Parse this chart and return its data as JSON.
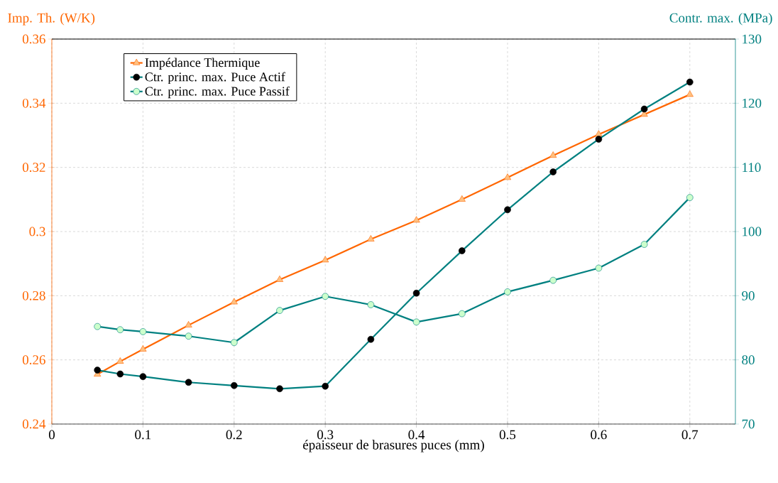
{
  "chart_data": {
    "type": "line",
    "xlabel": "épaisseur de brasures puces (mm)",
    "ylabel": "Imp. Th. (W/K)",
    "y2label": "Contr. max. (MPa)",
    "x": [
      0.05,
      0.075,
      0.1,
      0.15,
      0.2,
      0.25,
      0.3,
      0.35,
      0.4,
      0.45,
      0.5,
      0.55,
      0.6,
      0.65,
      0.7
    ],
    "xlim": [
      0,
      0.75
    ],
    "xticks": [
      0,
      0.1,
      0.2,
      0.3,
      0.4,
      0.5,
      0.6,
      0.7
    ],
    "ylim": [
      0.24,
      0.36
    ],
    "yticks": [
      0.24,
      0.26,
      0.28,
      0.3,
      0.32,
      0.34,
      0.36
    ],
    "y2lim": [
      70,
      130
    ],
    "y2ticks": [
      70,
      80,
      90,
      100,
      110,
      120,
      130
    ],
    "grid": true,
    "legend": "top left",
    "series": [
      {
        "name": "Impédance Thermique",
        "color": "#ff6600",
        "marker": "triangle",
        "colors": [
          "#ffc080",
          "#ffc080",
          "#ffc080",
          "#ffc080",
          "#ffc080",
          "#ffc080",
          "#ffc080",
          "#ffc080",
          "#ffc080",
          "#ffc080",
          "#ffc080",
          "#ffc080",
          "#ffc080",
          "#ffc080",
          "#ffc080"
        ],
        "axis": "y",
        "values": [
          0.2555,
          0.2595,
          0.2633,
          0.2708,
          0.278,
          0.285,
          0.2911,
          0.2976,
          0.3035,
          0.31,
          0.3168,
          0.3237,
          0.3303,
          0.3365,
          0.3427
        ]
      },
      {
        "name": "Ctr. princ. max. Puce Actif",
        "color": "#008080",
        "marker": "circle",
        "colors": [
          "#000000",
          "#000000",
          "#000000",
          "#000000",
          "#000000",
          "#000000",
          "#000000",
          "#000000",
          "#000000",
          "#000000",
          "#000000",
          "#000000",
          "#000000",
          "#000000",
          "#000000"
        ],
        "axis": "y2",
        "values": [
          78.4,
          77.8,
          77.4,
          76.5,
          76.0,
          75.5,
          75.9,
          83.2,
          90.4,
          97.0,
          103.4,
          109.3,
          114.4,
          119.1,
          123.3
        ]
      },
      {
        "name": "Ctr. princ. max. Puce Passif",
        "color": "#008080",
        "marker": "circle",
        "colors": [
          "#ccffcc",
          "#ccffcc",
          "#ccffcc",
          "#ccffcc",
          "#ccffcc",
          "#ccffcc",
          "#ccffcc",
          "#ccffcc",
          "#ccffcc",
          "#ccffcc",
          "#ccffcc",
          "#ccffcc",
          "#ccffcc",
          "#ccffcc",
          "#ccffcc"
        ],
        "axis": "y2",
        "values": [
          85.2,
          84.7,
          84.4,
          83.7,
          82.7,
          87.7,
          89.9,
          88.6,
          85.9,
          87.2,
          90.6,
          92.4,
          94.3,
          98.0,
          105.3
        ]
      }
    ]
  }
}
